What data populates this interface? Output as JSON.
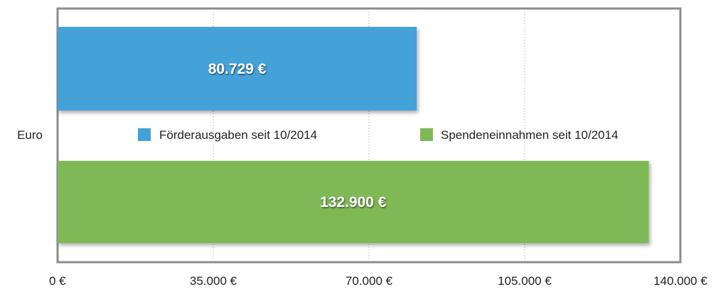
{
  "chart_data": {
    "type": "bar",
    "orientation": "horizontal",
    "category": "Euro",
    "series": [
      {
        "name": "Förderausgaben seit 10/2014",
        "value": 80729,
        "label": "80.729 €",
        "color": "#45A2D8"
      },
      {
        "name": "Spendeneinnahmen seit 10/2014",
        "value": 132900,
        "label": "132.900 €",
        "color": "#7FB957"
      }
    ],
    "xlim": [
      0,
      140000
    ],
    "xticks": [
      {
        "value": 0,
        "label": "0 €"
      },
      {
        "value": 35000,
        "label": "35.000 €"
      },
      {
        "value": 70000,
        "label": "70.000 €"
      },
      {
        "value": 105000,
        "label": "105.000 €"
      },
      {
        "value": 140000,
        "label": "140.000 €"
      }
    ],
    "grid": true,
    "legend_position": "center"
  }
}
